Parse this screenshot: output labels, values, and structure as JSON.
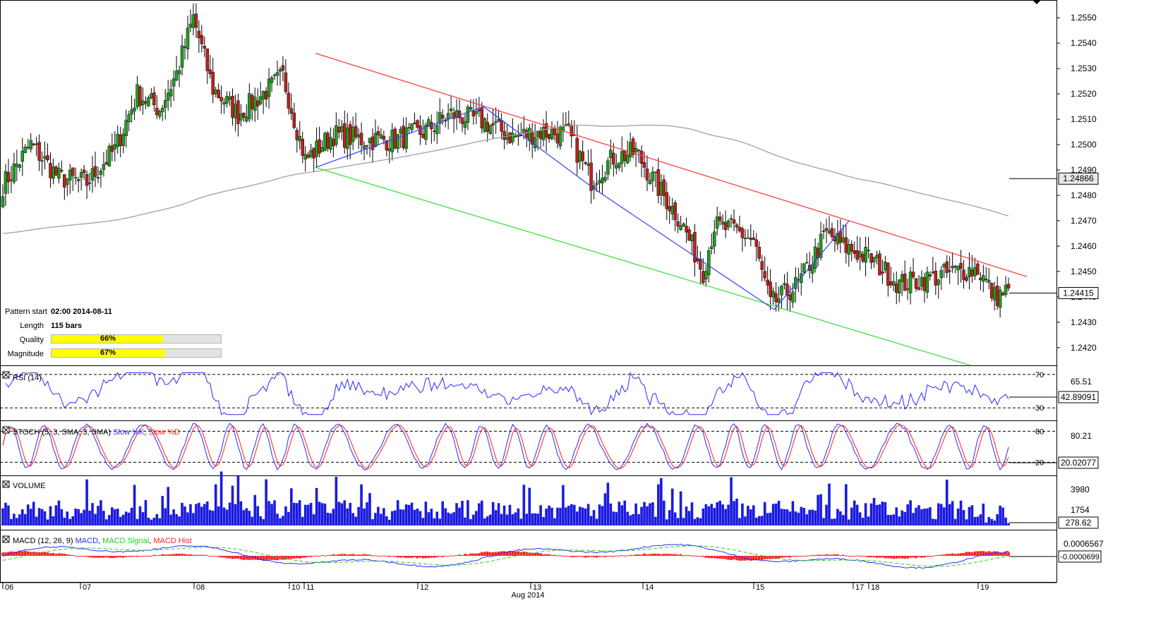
{
  "pattern_info": {
    "start_label": "Pattern start",
    "start_value": "02:00 2014-08-11",
    "length_label": "Length",
    "length_value": "115 bars",
    "quality_label": "Quality",
    "quality_pct": 66,
    "quality_text": "66%",
    "magnitude_label": "Magnitude",
    "magnitude_pct": 67,
    "magnitude_text": "67%"
  },
  "colors": {
    "bull": "#1fa01f",
    "bear": "#c02020",
    "resistance": "#ff4040",
    "support": "#40e040",
    "zigzag": "#3040ff",
    "ma": "#a0a0a0",
    "rsi": "#2a2aff",
    "stoch_k": "#2a2aff",
    "stoch_d": "#ff2020",
    "volume": "#1a1ae0",
    "macd": "#2a2aff",
    "macd_signal": "#20d020",
    "macd_hist": "#ff2020"
  },
  "chart_data": [
    {
      "type": "candlestick",
      "panel": "price",
      "y_ticks": [
        "1.2420",
        "1.2430",
        "1.2440",
        "1.2450",
        "1.2460",
        "1.2470",
        "1.2480",
        "1.2490",
        "1.2500",
        "1.2510",
        "1.2520",
        "1.2530",
        "1.2540",
        "1.2550"
      ],
      "ylim": [
        1.2413,
        1.2557
      ],
      "last_price_label": "1.24415",
      "ma_label": "1.24866",
      "x_labels": [
        "06",
        "07",
        "08",
        "10",
        "11",
        "12",
        "13",
        "14",
        "15",
        "17",
        "18",
        "19"
      ],
      "x_sublabel": "Aug 2014",
      "anchors": [
        [
          0,
          1.2484
        ],
        [
          10,
          1.25
        ],
        [
          20,
          1.2487
        ],
        [
          30,
          1.2485
        ],
        [
          40,
          1.2498
        ],
        [
          48,
          1.252
        ],
        [
          56,
          1.2514
        ],
        [
          62,
          1.2528
        ],
        [
          68,
          1.255
        ],
        [
          75,
          1.2522
        ],
        [
          84,
          1.2512
        ],
        [
          96,
          1.2523
        ],
        [
          100,
          1.2527
        ],
        [
          108,
          1.2494
        ],
        [
          118,
          1.2504
        ],
        [
          128,
          1.2502
        ],
        [
          140,
          1.2502
        ],
        [
          150,
          1.2505
        ],
        [
          160,
          1.2512
        ],
        [
          172,
          1.2509
        ],
        [
          182,
          1.2503
        ],
        [
          192,
          1.2505
        ],
        [
          202,
          1.2504
        ],
        [
          210,
          1.2486
        ],
        [
          218,
          1.2495
        ],
        [
          226,
          1.2497
        ],
        [
          234,
          1.2483
        ],
        [
          242,
          1.247
        ],
        [
          250,
          1.245
        ],
        [
          254,
          1.2468
        ],
        [
          262,
          1.2466
        ],
        [
          268,
          1.2462
        ],
        [
          274,
          1.2437
        ],
        [
          284,
          1.2445
        ],
        [
          294,
          1.2465
        ],
        [
          300,
          1.246
        ],
        [
          310,
          1.2455
        ],
        [
          320,
          1.2445
        ],
        [
          330,
          1.2447
        ],
        [
          340,
          1.245
        ],
        [
          348,
          1.2451
        ],
        [
          354,
          1.244
        ],
        [
          358,
          1.2442
        ]
      ],
      "resistance_line": [
        [
          1.2536,
          447
        ],
        [
          1.2448,
          1455
        ]
      ],
      "support_line": [
        [
          1.2491,
          447
        ],
        [
          1.2413,
          1375
        ]
      ],
      "zigzag": [
        [
          447,
          1.2491
        ],
        [
          685,
          1.2515
        ],
        [
          845,
          1.2482
        ],
        [
          1097,
          1.2435
        ],
        [
          1203,
          1.247
        ]
      ]
    },
    {
      "type": "line",
      "panel": "rsi",
      "title": "RSI (14)",
      "levels": [
        "70",
        "30"
      ],
      "tick_label": "65.51",
      "last_value": "42.89091"
    },
    {
      "type": "line",
      "panel": "stoch",
      "title": "STOCH (5, 3, SMA, 3, SMA)",
      "series": [
        {
          "name": "Slow %K"
        },
        {
          "name": "Slow %D"
        }
      ],
      "levels": [
        "80",
        "20"
      ],
      "tick_label": "80.21",
      "last_value": "20.02077"
    },
    {
      "type": "bar",
      "panel": "volume",
      "title": "VOLUME",
      "ticks": [
        "3980",
        "1754"
      ],
      "last_value": "278.62"
    },
    {
      "type": "line",
      "panel": "macd",
      "title": "MACD (12, 26, 9)",
      "series": [
        {
          "name": "MACD"
        },
        {
          "name": "MACD Signal"
        },
        {
          "name": "MACD Hist"
        }
      ],
      "tick_label": "0.0006567",
      "last_value": "-0.0000699"
    }
  ]
}
